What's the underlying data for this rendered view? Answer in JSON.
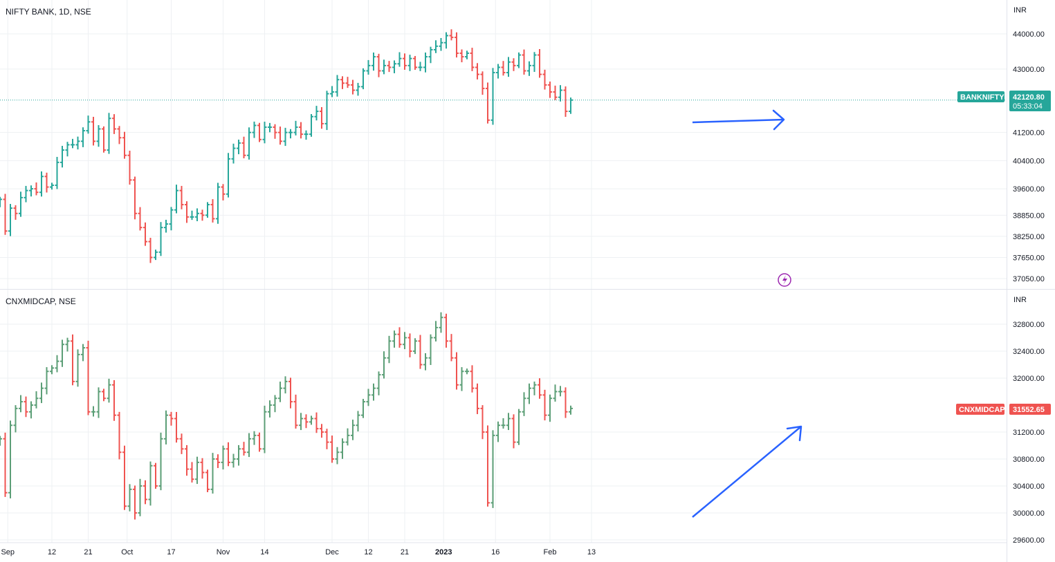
{
  "colors": {
    "up": "#26a69a",
    "down": "#ef5350",
    "up_midcap": "#5b9e76",
    "annotation": "#2962ff",
    "grid": "#eef0f3",
    "axis_text": "#131722",
    "lightning": "#9c27b0"
  },
  "x_axis": {
    "labels": [
      {
        "text": "Sep",
        "idx": 1.5
      },
      {
        "text": "12",
        "idx": 10
      },
      {
        "text": "21",
        "idx": 17
      },
      {
        "text": "Oct",
        "idx": 24.5
      },
      {
        "text": "17",
        "idx": 33
      },
      {
        "text": "Nov",
        "idx": 43
      },
      {
        "text": "14",
        "idx": 51
      },
      {
        "text": "Dec",
        "idx": 64
      },
      {
        "text": "12",
        "idx": 71
      },
      {
        "text": "21",
        "idx": 78
      },
      {
        "text": "2023",
        "idx": 85.5,
        "bold": true
      },
      {
        "text": "16",
        "idx": 95.5
      },
      {
        "text": "Feb",
        "idx": 106
      },
      {
        "text": "13",
        "idx": 114
      }
    ]
  },
  "chart_data": [
    {
      "type": "ohlc",
      "title": "NIFTY BANK, 1D, NSE",
      "symbol": "BANKNIFTY",
      "currency": "INR",
      "last_price": "42120.80",
      "countdown": "05:33:04",
      "current_value": 42120.8,
      "indicator_icon": "lightning-icon",
      "y_ticks": [
        44000,
        43000,
        42120.8,
        41200,
        40400,
        39600,
        38850,
        38250,
        37650,
        37050
      ],
      "y_tick_labels": [
        "44000.00",
        "43000.00",
        "",
        "41200.00",
        "40400.00",
        "39600.00",
        "38850.00",
        "38250.00",
        "37650.00",
        "37050.00"
      ],
      "closes": [
        39300,
        38400,
        39050,
        38900,
        39350,
        39550,
        39600,
        39500,
        39950,
        39650,
        39700,
        40350,
        40700,
        40850,
        40850,
        40950,
        41250,
        41500,
        40950,
        41300,
        40700,
        41600,
        41300,
        41050,
        40550,
        39850,
        38900,
        38500,
        38100,
        37650,
        37800,
        38500,
        38600,
        39000,
        39550,
        39150,
        38800,
        38800,
        38900,
        38850,
        39150,
        38750,
        39650,
        39450,
        40450,
        40750,
        40900,
        40550,
        41200,
        41400,
        41000,
        41350,
        41350,
        41200,
        40950,
        41200,
        41200,
        41350,
        41150,
        41150,
        41650,
        41800,
        41450,
        42300,
        42350,
        42700,
        42600,
        42550,
        42400,
        42500,
        42950,
        43100,
        43350,
        42950,
        43100,
        43050,
        43150,
        43300,
        43100,
        43300,
        43050,
        43050,
        43350,
        43550,
        43650,
        43750,
        43950,
        43900,
        43450,
        43350,
        43450,
        43050,
        42850,
        42450,
        41550,
        42900,
        43050,
        42900,
        43200,
        43100,
        43400,
        42950,
        43100,
        43400,
        42850,
        42550,
        42350,
        42200,
        42400,
        41800,
        42120
      ]
    },
    {
      "type": "ohlc",
      "title": "CNXMIDCAP, NSE",
      "symbol": "CNXMIDCAP",
      "currency": "INR",
      "last_price": "31552.65",
      "current_value": 31552.65,
      "y_ticks": [
        32800,
        32400,
        32000,
        31200,
        30800,
        30400,
        30000,
        29600
      ],
      "y_tick_labels": [
        "32800.00",
        "32400.00",
        "32000.00",
        "31200.00",
        "30800.00",
        "30400.00",
        "30000.00",
        "29600.00"
      ],
      "closes": [
        31100,
        30300,
        31300,
        31550,
        31650,
        31500,
        31600,
        31700,
        31850,
        32100,
        32150,
        32250,
        32500,
        32550,
        31950,
        32350,
        32450,
        31500,
        31500,
        31800,
        31700,
        31900,
        31450,
        30900,
        30100,
        30350,
        30000,
        30400,
        30200,
        30700,
        30400,
        31100,
        31450,
        31400,
        31100,
        30950,
        30650,
        30500,
        30750,
        30600,
        30350,
        30800,
        30750,
        30950,
        30750,
        30800,
        30950,
        30900,
        31100,
        31150,
        30950,
        31500,
        31600,
        31700,
        31850,
        31950,
        31650,
        31300,
        31400,
        31350,
        31400,
        31250,
        31200,
        31050,
        30800,
        30900,
        31050,
        31150,
        31300,
        31450,
        31650,
        31750,
        31850,
        32050,
        32300,
        32550,
        32650,
        32500,
        32600,
        32400,
        32550,
        32200,
        32300,
        32600,
        32750,
        32900,
        32550,
        32300,
        31900,
        32100,
        32100,
        31850,
        31550,
        31200,
        30150,
        31150,
        31300,
        31300,
        31400,
        31050,
        31500,
        31700,
        31850,
        31900,
        31750,
        31450,
        31700,
        31800,
        31800,
        31500,
        31550
      ]
    }
  ]
}
